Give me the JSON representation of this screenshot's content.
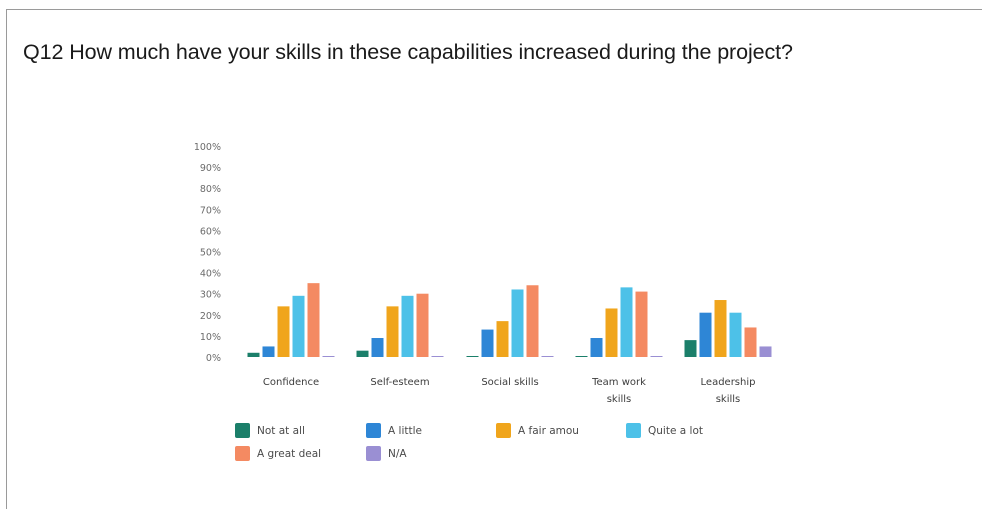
{
  "question": "Q12 How much have your skills in these capabilities increased during the project?",
  "chart_data": {
    "type": "bar",
    "categories": [
      [
        "Confidence"
      ],
      [
        "Self-esteem"
      ],
      [
        "Social skills"
      ],
      [
        "Team work",
        "skills"
      ],
      [
        "Leadership",
        "skills"
      ]
    ],
    "yticks": [
      "0%",
      "10%",
      "20%",
      "30%",
      "40%",
      "50%",
      "60%",
      "70%",
      "80%",
      "90%",
      "100%"
    ],
    "ylim": [
      0,
      100
    ],
    "series": [
      {
        "name": "Not at all",
        "color": "#1b7f6a",
        "values": [
          2,
          3,
          0,
          0,
          8
        ]
      },
      {
        "name": "A little",
        "color": "#2e86d6",
        "values": [
          5,
          9,
          13,
          9,
          21
        ]
      },
      {
        "name": "A fair amou",
        "color": "#f0a51c",
        "values": [
          24,
          24,
          17,
          23,
          27
        ]
      },
      {
        "name": "Quite a lot",
        "color": "#4dc1e8",
        "values": [
          29,
          29,
          32,
          33,
          21
        ]
      },
      {
        "name": "A great deal",
        "color": "#f48a62",
        "values": [
          35,
          30,
          34,
          31,
          14
        ]
      },
      {
        "name": "N/A",
        "color": "#9a8fd3",
        "values": [
          0,
          0,
          0,
          0,
          5
        ]
      }
    ],
    "legend_position": "bottom"
  }
}
